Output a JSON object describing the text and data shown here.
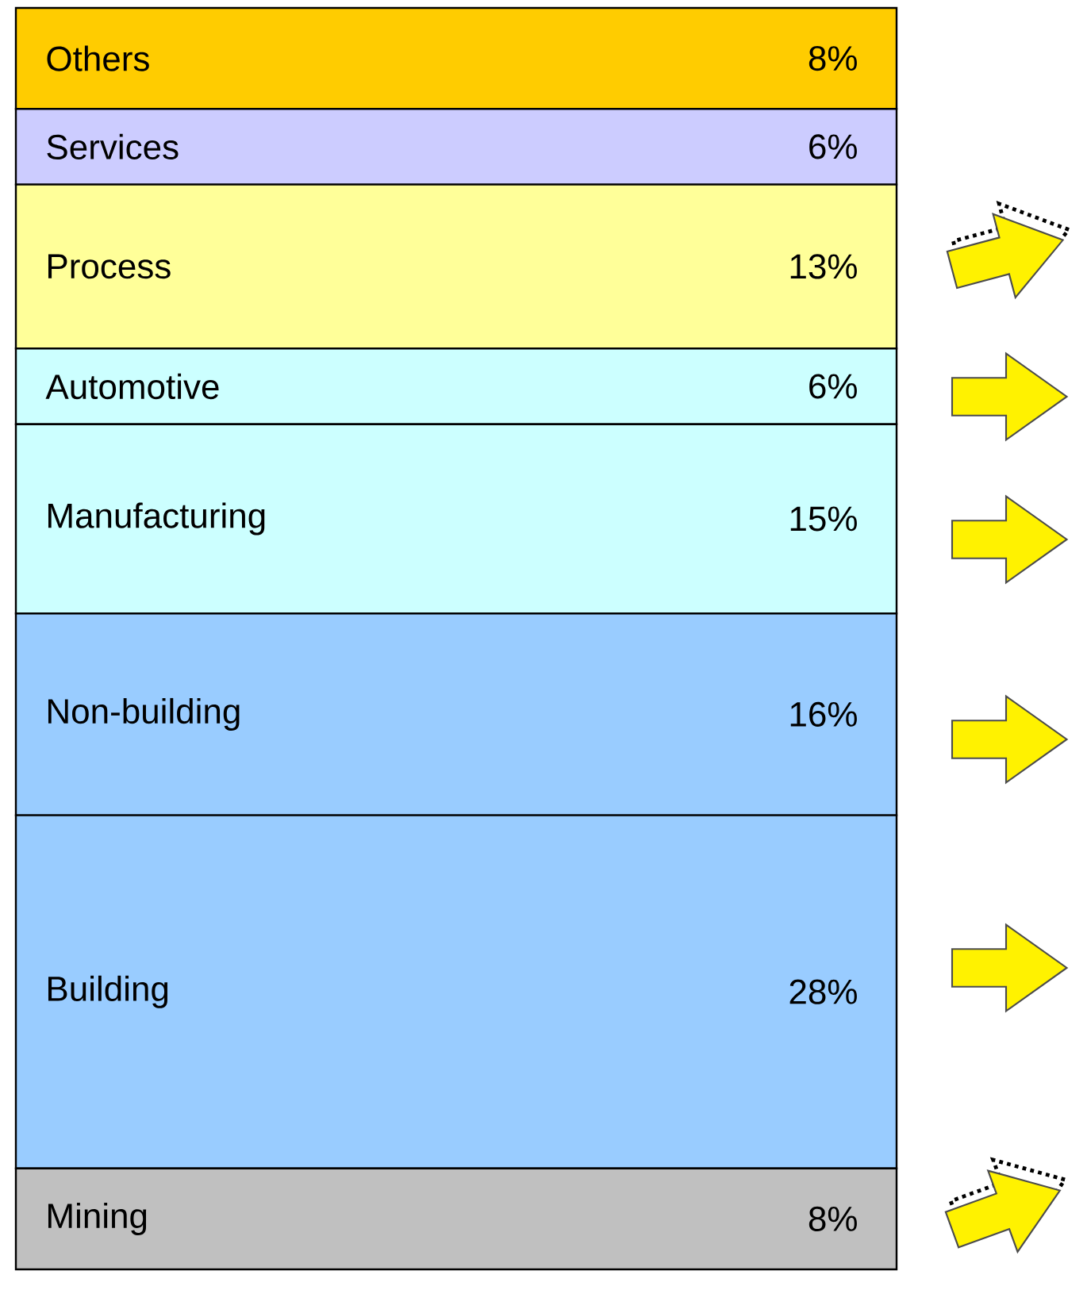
{
  "chart_data": {
    "type": "bar",
    "stacked": true,
    "categories": [
      null
    ],
    "legend": false,
    "series": [
      {
        "name": "Mining",
        "color": "#c0c0c0",
        "values": [
          8
        ],
        "value_labels": [
          "8%"
        ]
      },
      {
        "name": "Building",
        "color": "#99ccff",
        "values": [
          28
        ],
        "value_labels": [
          "28%"
        ]
      },
      {
        "name": "Non-building",
        "color": "#99ccff",
        "values": [
          16
        ],
        "value_labels": [
          "16%"
        ]
      },
      {
        "name": "Manufacturing",
        "color": "#ccffff",
        "values": [
          15
        ],
        "value_labels": [
          "15%"
        ]
      },
      {
        "name": "Automotive",
        "color": "#ccffff",
        "values": [
          6
        ],
        "value_labels": [
          "6%"
        ]
      },
      {
        "name": "Process",
        "color": "#ffff99",
        "values": [
          13
        ],
        "value_labels": [
          "13%"
        ]
      },
      {
        "name": "Services",
        "color": "#ccccff",
        "values": [
          6
        ],
        "value_labels": [
          "6%"
        ]
      },
      {
        "name": "Others",
        "color": "#ffcc00",
        "values": [
          8
        ],
        "value_labels": [
          "8%"
        ]
      }
    ]
  }
}
